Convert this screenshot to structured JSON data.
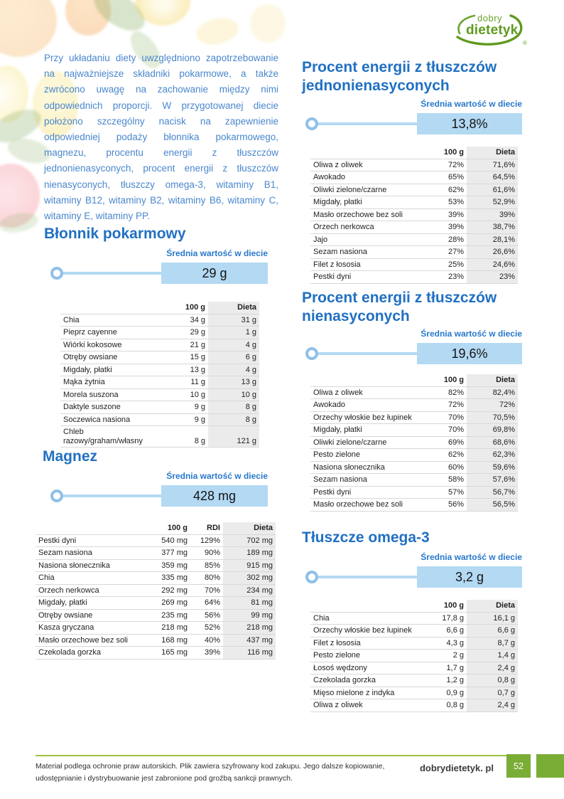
{
  "logo": {
    "top": "dobry",
    "bottom": "dietetyk",
    "registered": "®"
  },
  "intro": "Przy układaniu diety uwzględniono zapotrzebowanie na najważniejsze składniki pokarmowe, a także zwrócono uwagę na zachowanie między nimi odpowiednich proporcji. W przygotowanej diecie położono szczególny nacisk na zapewnienie odpowiedniej podaży błonnika pokarmowego, magnezu, procentu energii z tłuszczów jednonienasyconych, procent energii z tłuszczów nienasyconych, tłuszczy omega-3, witaminy B1, witaminy B12, witaminy B2, witaminy B6, witaminy C, witaminy E, witaminy PP.",
  "labels": {
    "average": "Średnia wartość w diecie"
  },
  "sections": {
    "blonnik": {
      "title": "Błonnik pokarmowy",
      "value": "29 g",
      "columns": [
        "",
        "100 g",
        "Dieta"
      ],
      "rows": [
        [
          "Chia",
          "34 g",
          "31 g"
        ],
        [
          "Pieprz cayenne",
          "29 g",
          "1 g"
        ],
        [
          "Wiórki kokosowe",
          "21 g",
          "4 g"
        ],
        [
          "Otręby owsiane",
          "15 g",
          "6 g"
        ],
        [
          "Migdały, płatki",
          "13 g",
          "4 g"
        ],
        [
          "Mąka żytnia",
          "11 g",
          "13 g"
        ],
        [
          "Morela suszona",
          "10 g",
          "10 g"
        ],
        [
          "Daktyle suszone",
          "9 g",
          "8 g"
        ],
        [
          "Soczewica nasiona",
          "9 g",
          "8 g"
        ],
        [
          "Chleb razowy/graham/własny",
          "8 g",
          "121 g"
        ]
      ]
    },
    "magnez": {
      "title": "Magnez",
      "value": "428 mg",
      "columns": [
        "",
        "100 g",
        "RDI",
        "Dieta"
      ],
      "rows": [
        [
          "Pestki dyni",
          "540 mg",
          "129%",
          "702 mg"
        ],
        [
          "Sezam nasiona",
          "377 mg",
          "90%",
          "189 mg"
        ],
        [
          "Nasiona słonecznika",
          "359 mg",
          "85%",
          "915 mg"
        ],
        [
          "Chia",
          "335 mg",
          "80%",
          "302 mg"
        ],
        [
          "Orzech nerkowca",
          "292 mg",
          "70%",
          "234 mg"
        ],
        [
          "Migdały, płatki",
          "269 mg",
          "64%",
          "81 mg"
        ],
        [
          "Otręby owsiane",
          "235 mg",
          "56%",
          "99 mg"
        ],
        [
          "Kasza gryczana",
          "218 mg",
          "52%",
          "218 mg"
        ],
        [
          "Masło orzechowe bez soli",
          "168 mg",
          "40%",
          "437 mg"
        ],
        [
          "Czekolada gorzka",
          "165 mg",
          "39%",
          "116 mg"
        ]
      ]
    },
    "mono": {
      "title": "Procent energii z tłuszczów jednonienasyconych",
      "value": "13,8%",
      "columns": [
        "",
        "100 g",
        "Dieta"
      ],
      "rows": [
        [
          "Oliwa z oliwek",
          "72%",
          "71,6%"
        ],
        [
          "Awokado",
          "65%",
          "64,5%"
        ],
        [
          "Oliwki zielone/czarne",
          "62%",
          "61,6%"
        ],
        [
          "Migdały, płatki",
          "53%",
          "52,9%"
        ],
        [
          "Masło orzechowe bez soli",
          "39%",
          "39%"
        ],
        [
          "Orzech nerkowca",
          "39%",
          "38,7%"
        ],
        [
          "Jajo",
          "28%",
          "28,1%"
        ],
        [
          "Sezam nasiona",
          "27%",
          "26,6%"
        ],
        [
          "Filet z łososia",
          "25%",
          "24,6%"
        ],
        [
          "Pestki dyni",
          "23%",
          "23%"
        ]
      ]
    },
    "unsat": {
      "title": "Procent energii z tłuszczów nienasyconych",
      "value": "19,6%",
      "columns": [
        "",
        "100 g",
        "Dieta"
      ],
      "rows": [
        [
          "Oliwa z oliwek",
          "82%",
          "82,4%"
        ],
        [
          "Awokado",
          "72%",
          "72%"
        ],
        [
          "Orzechy włoskie bez łupinek",
          "70%",
          "70,5%"
        ],
        [
          "Migdały, płatki",
          "70%",
          "69,8%"
        ],
        [
          "Oliwki zielone/czarne",
          "69%",
          "68,6%"
        ],
        [
          "Pesto zielone",
          "62%",
          "62,3%"
        ],
        [
          "Nasiona słonecznika",
          "60%",
          "59,6%"
        ],
        [
          "Sezam nasiona",
          "58%",
          "57,6%"
        ],
        [
          "Pestki dyni",
          "57%",
          "56,7%"
        ],
        [
          "Masło orzechowe bez soli",
          "56%",
          "56,5%"
        ]
      ]
    },
    "omega": {
      "title": "Tłuszcze omega-3",
      "value": "3,2 g",
      "columns": [
        "",
        "100 g",
        "Dieta"
      ],
      "rows": [
        [
          "Chia",
          "17,8 g",
          "16,1 g"
        ],
        [
          "Orzechy włoskie bez łupinek",
          "6,6 g",
          "6,6 g"
        ],
        [
          "Filet z łososia",
          "4,3 g",
          "8,7 g"
        ],
        [
          "Pesto zielone",
          "2 g",
          "1,4 g"
        ],
        [
          "Łosoś wędzony",
          "1,7 g",
          "2,4 g"
        ],
        [
          "Czekolada gorzka",
          "1,2 g",
          "0,8 g"
        ],
        [
          "Mięso mielone z indyka",
          "0,9 g",
          "0,7 g"
        ],
        [
          "Oliwa z oliwek",
          "0,8 g",
          "2,4 g"
        ]
      ]
    }
  },
  "footer": {
    "notice": "Materiał podlega ochronie praw autorskich. Plik zawiera szyfrowany kod zakupu. Jego dalsze kopiowanie, udostępnianie i dystrybuowanie jest zabronione pod groźbą sankcji prawnych.",
    "site": "dobrydietetyk. pl",
    "page": "52"
  },
  "colors": {
    "heading_blue": "#2170c2",
    "text_blue": "#4a87cd",
    "bar_fill": "#b3d9f3",
    "dieta_column_bg": "#ebebeb",
    "brand_green": "#79ad35",
    "footer_line_green": "#9cc43f"
  }
}
